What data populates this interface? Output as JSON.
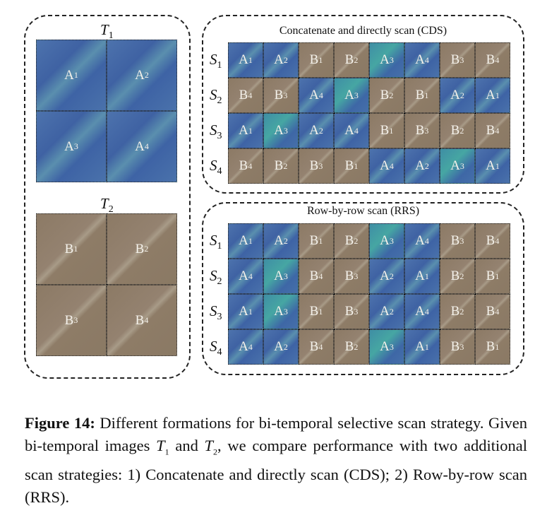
{
  "left_panel": {
    "t1_label": {
      "letter": "T",
      "sub": "1"
    },
    "t2_label": {
      "letter": "T",
      "sub": "2"
    },
    "t1_patches": [
      "A1",
      "A2",
      "A3",
      "A4"
    ],
    "t2_patches": [
      "B1",
      "B2",
      "B3",
      "B4"
    ]
  },
  "cds": {
    "title": "Concatenate and directly scan (CDS)",
    "rows": [
      {
        "label": "S1",
        "cells": [
          "A1",
          "A2",
          "B1",
          "B2",
          "A3",
          "A4",
          "B3",
          "B4"
        ]
      },
      {
        "label": "S2",
        "cells": [
          "B4",
          "B3",
          "A4",
          "A3",
          "B2",
          "B1",
          "A2",
          "A1"
        ]
      },
      {
        "label": "S3",
        "cells": [
          "A1",
          "A3",
          "A2",
          "A4",
          "B1",
          "B3",
          "B2",
          "B4"
        ]
      },
      {
        "label": "S4",
        "cells": [
          "B4",
          "B2",
          "B3",
          "B1",
          "A4",
          "A2",
          "A3",
          "A1"
        ]
      }
    ]
  },
  "rrs": {
    "title": "Row-by-row scan (RRS)",
    "rows": [
      {
        "label": "S1",
        "cells": [
          "A1",
          "A2",
          "B1",
          "B2",
          "A3",
          "A4",
          "B3",
          "B4"
        ]
      },
      {
        "label": "S2",
        "cells": [
          "A4",
          "A3",
          "B4",
          "B3",
          "A2",
          "A1",
          "B2",
          "B1"
        ]
      },
      {
        "label": "S3",
        "cells": [
          "A1",
          "A3",
          "B1",
          "B3",
          "A2",
          "A4",
          "B2",
          "B4"
        ]
      },
      {
        "label": "S4",
        "cells": [
          "A4",
          "A2",
          "B4",
          "B2",
          "A3",
          "A1",
          "B3",
          "B1"
        ]
      }
    ]
  },
  "caption": {
    "label": "Figure 14:",
    "text1": " Different formations for bi-temporal selective scan strategy. Given bi-temporal images ",
    "t1": "T",
    "t1_sub": "1",
    "text2": " and ",
    "t2": "T",
    "t2_sub": "2",
    "text3": ", we compare performance with two additional scan strategies: 1) Concatenate and directly scan (CDS); 2) Row-by-row scan (RRS)."
  },
  "colors": {
    "t1_tile": "#4a6fa8",
    "t1_tile_alt": "#45a0a3",
    "t2_tile": "#8f7d68"
  }
}
